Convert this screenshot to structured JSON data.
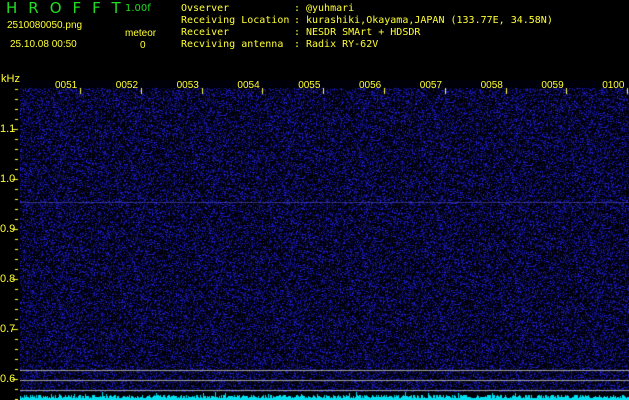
{
  "app": {
    "logo": "HROFFT",
    "version": "1.00f"
  },
  "file": {
    "name": "2510080050.png",
    "datetime": "25.10.08 00:50"
  },
  "meteor": {
    "label": "meteor",
    "count": "0"
  },
  "info": [
    {
      "label": "Ovserver",
      "value": "@yuhmari"
    },
    {
      "label": "Receiving Location",
      "value": "kurashiki,Okayama,JAPAN (133.77E, 34.58N)"
    },
    {
      "label": "Receiver",
      "value": "NESDR SMArt + HDSDR"
    },
    {
      "label": "Recviving antenna",
      "value": "Radix RY-62V"
    }
  ],
  "axis": {
    "y_unit": "kHz",
    "y_ticks": [
      "1.1",
      "1.0",
      "0.9",
      "0.8",
      "0.7",
      "0.6"
    ],
    "time_ticks": [
      "0051",
      "0052",
      "0053",
      "0054",
      "0055",
      "0056",
      "0057",
      "0058",
      "0059",
      "0100"
    ]
  },
  "colors": {
    "background": "#000000",
    "noise": "#2020c0",
    "text": "#ffff33",
    "logo": "#22dd22",
    "spectrum": "#00e0f0",
    "guide_lines": "#a0a0a0"
  }
}
